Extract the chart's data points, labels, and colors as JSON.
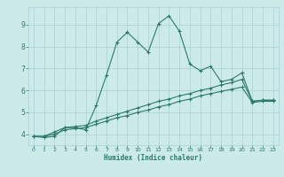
{
  "xlabel": "Humidex (Indice chaleur)",
  "ylabel": "",
  "background_color": "#cdeaea",
  "grid_color": "#aacfcf",
  "line_color": "#2a7a6a",
  "x_values": [
    0,
    1,
    2,
    3,
    4,
    5,
    6,
    7,
    8,
    9,
    10,
    11,
    12,
    13,
    14,
    15,
    16,
    17,
    18,
    19,
    20,
    21,
    22,
    23
  ],
  "series1": [
    3.9,
    3.85,
    3.9,
    4.3,
    4.3,
    4.2,
    5.3,
    6.7,
    8.2,
    8.65,
    8.2,
    7.75,
    9.05,
    9.4,
    8.7,
    7.2,
    6.9,
    7.1,
    6.4,
    6.5,
    6.8,
    5.5,
    5.55,
    5.55
  ],
  "series2": [
    3.9,
    3.9,
    4.1,
    4.3,
    4.35,
    4.4,
    4.6,
    4.75,
    4.9,
    5.05,
    5.2,
    5.35,
    5.5,
    5.6,
    5.75,
    5.85,
    6.0,
    6.1,
    6.25,
    6.35,
    6.5,
    5.5,
    5.55,
    5.55
  ],
  "series3": [
    3.9,
    3.9,
    4.0,
    4.2,
    4.25,
    4.3,
    4.45,
    4.6,
    4.75,
    4.85,
    5.0,
    5.1,
    5.25,
    5.35,
    5.5,
    5.6,
    5.75,
    5.85,
    5.95,
    6.05,
    6.15,
    5.45,
    5.5,
    5.5
  ],
  "ylim": [
    3.5,
    9.8
  ],
  "xlim": [
    -0.5,
    23.5
  ],
  "yticks": [
    4,
    5,
    6,
    7,
    8,
    9
  ],
  "xticks": [
    0,
    1,
    2,
    3,
    4,
    5,
    6,
    7,
    8,
    9,
    10,
    11,
    12,
    13,
    14,
    15,
    16,
    17,
    18,
    19,
    20,
    21,
    22,
    23
  ],
  "marker": "+",
  "markersize": 3,
  "linewidth": 0.8
}
